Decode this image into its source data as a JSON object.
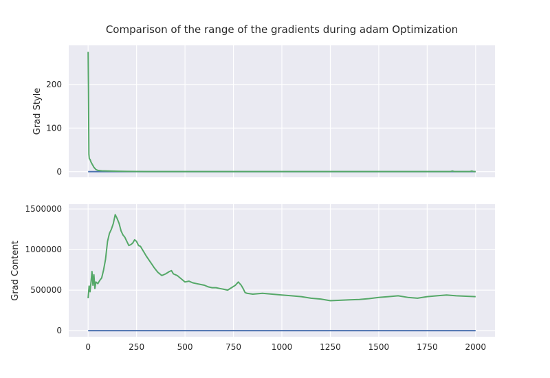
{
  "chart_data": [
    {
      "type": "line",
      "title": "Comparison of the range of the gradients during adam Optimization",
      "xlabel": "",
      "ylabel": "Grad Style",
      "xlim": [
        -100,
        2100
      ],
      "ylim": [
        -13,
        290
      ],
      "x_ticks": [
        0,
        250,
        500,
        750,
        1000,
        1250,
        1500,
        1750,
        2000
      ],
      "x_tick_labels_visible": false,
      "y_ticks": [
        0,
        100,
        200
      ],
      "grid": true,
      "series": [
        {
          "color": "#4c72b0",
          "x": [
            0,
            2000
          ],
          "values": [
            0,
            0
          ]
        },
        {
          "color": "#55a868",
          "x": [
            0,
            2,
            4,
            6,
            10,
            15,
            20,
            30,
            40,
            50,
            70,
            100,
            150,
            200,
            300,
            500,
            1000,
            1500,
            1870,
            1880,
            1890,
            1970,
            1980,
            1990,
            2000
          ],
          "values": [
            275,
            190,
            40,
            30,
            28,
            22,
            18,
            10,
            5,
            3,
            2,
            1.5,
            1,
            0.5,
            0.3,
            0.2,
            0.2,
            0.2,
            0.2,
            1.5,
            0.2,
            0.2,
            1.5,
            0.2,
            0.2
          ]
        }
      ]
    },
    {
      "type": "line",
      "xlabel": "",
      "ylabel": "Grad Content",
      "xlim": [
        -100,
        2100
      ],
      "ylim": [
        -75000,
        1560000
      ],
      "x_ticks": [
        0,
        250,
        500,
        750,
        1000,
        1250,
        1500,
        1750,
        2000
      ],
      "y_ticks": [
        0,
        500000,
        1000000,
        1500000
      ],
      "grid": true,
      "series": [
        {
          "color": "#4c72b0",
          "x": [
            0,
            2000
          ],
          "values": [
            0,
            0
          ]
        },
        {
          "color": "#55a868",
          "x": [
            0,
            5,
            10,
            15,
            20,
            25,
            30,
            35,
            40,
            50,
            60,
            70,
            80,
            90,
            100,
            110,
            120,
            130,
            140,
            150,
            160,
            170,
            180,
            190,
            200,
            210,
            220,
            230,
            240,
            250,
            260,
            270,
            280,
            290,
            300,
            320,
            340,
            360,
            380,
            400,
            420,
            430,
            440,
            460,
            480,
            500,
            520,
            540,
            560,
            580,
            600,
            620,
            640,
            660,
            680,
            700,
            720,
            740,
            760,
            775,
            790,
            800,
            810,
            820,
            850,
            900,
            950,
            1000,
            1050,
            1100,
            1150,
            1200,
            1250,
            1300,
            1350,
            1400,
            1450,
            1500,
            1550,
            1600,
            1650,
            1700,
            1750,
            1800,
            1850,
            1900,
            1950,
            2000
          ],
          "values": [
            400000,
            550000,
            480000,
            600000,
            730000,
            560000,
            690000,
            520000,
            600000,
            580000,
            620000,
            650000,
            750000,
            880000,
            1100000,
            1200000,
            1250000,
            1320000,
            1430000,
            1380000,
            1320000,
            1230000,
            1180000,
            1150000,
            1100000,
            1050000,
            1060000,
            1080000,
            1120000,
            1100000,
            1050000,
            1040000,
            1000000,
            960000,
            920000,
            850000,
            780000,
            720000,
            680000,
            700000,
            730000,
            740000,
            700000,
            680000,
            640000,
            600000,
            610000,
            590000,
            580000,
            570000,
            560000,
            540000,
            530000,
            530000,
            520000,
            510000,
            500000,
            530000,
            560000,
            600000,
            560000,
            520000,
            470000,
            460000,
            450000,
            460000,
            450000,
            440000,
            430000,
            420000,
            400000,
            390000,
            370000,
            375000,
            380000,
            385000,
            395000,
            410000,
            420000,
            430000,
            410000,
            400000,
            420000,
            430000,
            440000,
            430000,
            425000,
            420000
          ]
        }
      ]
    }
  ]
}
